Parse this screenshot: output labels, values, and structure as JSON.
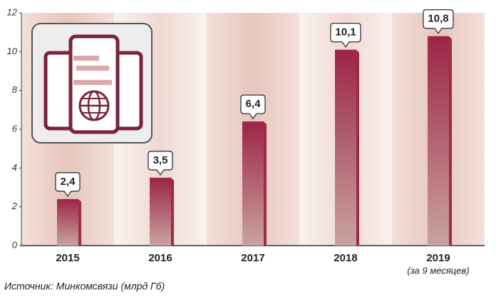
{
  "chart_data": {
    "type": "bar",
    "categories": [
      "2015",
      "2016",
      "2017",
      "2018",
      "2019"
    ],
    "x_sublabels": [
      null,
      null,
      null,
      null,
      "(за 9 месяцев)"
    ],
    "values": [
      2.4,
      3.5,
      6.4,
      10.1,
      10.8
    ],
    "value_labels": [
      "2,4",
      "3,5",
      "6,4",
      "10,1",
      "10,8"
    ],
    "color": "#a0294a",
    "ylim": [
      0,
      12
    ],
    "yticks": [
      0,
      2,
      4,
      6,
      8,
      10,
      12
    ],
    "grid": false,
    "source": "Источник: Минкомсвязи (млрд Гб)"
  }
}
